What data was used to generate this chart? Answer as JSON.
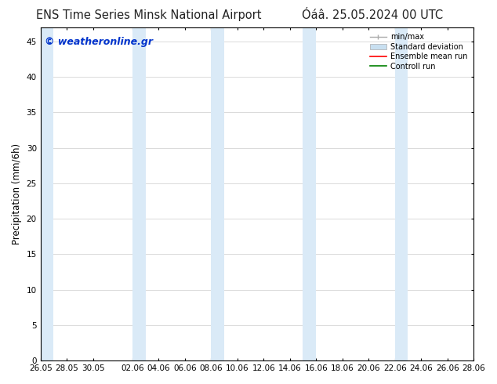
{
  "title_left": "ENS Time Series Minsk National Airport",
  "title_right": "Óáâ. 25.05.2024 00 UTC",
  "ylabel": "Precipitation (mm/6h)",
  "watermark": "© weatheronline.gr",
  "ylim": [
    0,
    47
  ],
  "yticks": [
    0,
    5,
    10,
    15,
    20,
    25,
    30,
    35,
    40,
    45
  ],
  "xtick_labels": [
    "26.05",
    "28.05",
    "30.05",
    "02.06",
    "04.06",
    "06.06",
    "08.06",
    "10.06",
    "12.06",
    "14.06",
    "16.06",
    "18.06",
    "20.06",
    "22.06",
    "24.06",
    "26.06",
    "28.06"
  ],
  "bg_color": "#ffffff",
  "plot_bg_color": "#ffffff",
  "shade_color": "#daeaf7",
  "shade_alpha": 1.0,
  "shade_columns_x": [
    [
      0,
      1
    ],
    [
      7,
      8
    ],
    [
      14,
      15
    ],
    [
      21,
      22
    ],
    [
      28,
      29
    ]
  ],
  "legend_entries": [
    {
      "label": "min/max",
      "color": "#aaaaaa",
      "lw": 1,
      "style": "errorbar"
    },
    {
      "label": "Standard deviation",
      "color": "#c8dff0",
      "lw": 8,
      "style": "bar"
    },
    {
      "label": "Ensemble mean run",
      "color": "#ff0000",
      "lw": 1.2,
      "style": "line"
    },
    {
      "label": "Controll run",
      "color": "#008000",
      "lw": 1.2,
      "style": "line"
    }
  ],
  "title_fontsize": 10.5,
  "axis_label_fontsize": 8.5,
  "tick_fontsize": 7.5,
  "watermark_color": "#0033cc",
  "watermark_fontsize": 9,
  "x_min": 0,
  "x_max": 33
}
